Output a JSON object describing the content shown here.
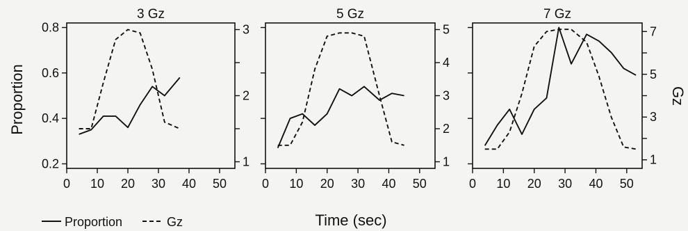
{
  "figure": {
    "ylabel_left": "Proportion",
    "ylabel_right": "Gz",
    "xlabel": "Time (sec)"
  },
  "legend": {
    "position": "bottom-left",
    "items": [
      {
        "label": "Proportion",
        "style": "solid"
      },
      {
        "label": "Gz",
        "style": "dashed"
      }
    ]
  },
  "chart_data": [
    {
      "type": "line",
      "title": "3 Gz",
      "xlim": [
        0,
        55
      ],
      "xticks": [
        0,
        10,
        20,
        30,
        40,
        50
      ],
      "left_axis": {
        "ylim": [
          0.18,
          0.82
        ],
        "ticks": [
          0.2,
          0.4,
          0.6,
          0.8
        ],
        "tick_labels": [
          "0.2",
          "0.4",
          "0.6",
          "0.8"
        ]
      },
      "right_axis": {
        "ylim": [
          0.9,
          3.1
        ],
        "ticks": [
          1,
          1.5,
          2,
          2.5,
          3
        ],
        "tick_labels": [
          "1",
          "",
          "2",
          "",
          "3"
        ]
      },
      "series": [
        {
          "name": "Proportion",
          "axis": "left",
          "style": "solid",
          "x": [
            4,
            8,
            12,
            16,
            20,
            24,
            28,
            32,
            37
          ],
          "y": [
            0.33,
            0.35,
            0.41,
            0.41,
            0.36,
            0.46,
            0.54,
            0.5,
            0.58
          ]
        },
        {
          "name": "Gz",
          "axis": "right",
          "style": "dashed",
          "x": [
            4,
            8,
            12,
            16,
            20,
            24,
            28,
            32,
            37
          ],
          "y": [
            1.5,
            1.5,
            2.2,
            2.85,
            3.0,
            2.95,
            2.4,
            1.6,
            1.5
          ]
        }
      ]
    },
    {
      "type": "line",
      "title": "5 Gz",
      "xlim": [
        0,
        55
      ],
      "xticks": [
        0,
        10,
        20,
        30,
        40,
        50
      ],
      "left_axis": {
        "ylim": [
          0.18,
          0.82
        ],
        "ticks": [
          0.2,
          0.4,
          0.6,
          0.8
        ],
        "tick_labels": []
      },
      "right_axis": {
        "ylim": [
          0.8,
          5.2
        ],
        "ticks": [
          1,
          2,
          3,
          4,
          5
        ],
        "tick_labels": [
          "1",
          "2",
          "3",
          "4",
          "5"
        ]
      },
      "series": [
        {
          "name": "Proportion",
          "axis": "left",
          "style": "solid",
          "x": [
            4,
            8,
            12,
            16,
            20,
            24,
            28,
            32,
            37,
            41,
            45
          ],
          "y": [
            0.27,
            0.4,
            0.42,
            0.37,
            0.42,
            0.53,
            0.5,
            0.54,
            0.48,
            0.51,
            0.5
          ]
        },
        {
          "name": "Gz",
          "axis": "right",
          "style": "dashed",
          "x": [
            4,
            8,
            12,
            16,
            20,
            24,
            28,
            32,
            37,
            41,
            45
          ],
          "y": [
            1.5,
            1.5,
            2.2,
            3.8,
            4.8,
            4.9,
            4.9,
            4.8,
            3.0,
            1.6,
            1.5
          ]
        }
      ]
    },
    {
      "type": "line",
      "title": "7 Gz",
      "xlim": [
        0,
        55
      ],
      "xticks": [
        0,
        10,
        20,
        30,
        40,
        50
      ],
      "left_axis": {
        "ylim": [
          0.18,
          0.82
        ],
        "ticks": [
          0.2,
          0.4,
          0.6,
          0.8
        ],
        "tick_labels": []
      },
      "right_axis": {
        "ylim": [
          0.6,
          7.4
        ],
        "ticks": [
          1,
          2,
          3,
          4,
          5,
          6,
          7
        ],
        "tick_labels": [
          "1",
          "",
          "3",
          "",
          "5",
          "",
          "7"
        ]
      },
      "series": [
        {
          "name": "Proportion",
          "axis": "left",
          "style": "solid",
          "x": [
            4,
            8,
            12,
            16,
            20,
            24,
            28,
            32,
            37,
            41,
            45,
            49,
            53
          ],
          "y": [
            0.28,
            0.37,
            0.44,
            0.33,
            0.44,
            0.49,
            0.8,
            0.64,
            0.77,
            0.74,
            0.69,
            0.62,
            0.59
          ]
        },
        {
          "name": "Gz",
          "axis": "right",
          "style": "dashed",
          "x": [
            4,
            8,
            12,
            16,
            20,
            24,
            28,
            32,
            37,
            41,
            45,
            49,
            53
          ],
          "y": [
            1.5,
            1.5,
            2.3,
            4.1,
            6.3,
            7.0,
            7.1,
            7.1,
            6.5,
            4.9,
            3.0,
            1.6,
            1.5
          ]
        }
      ]
    }
  ]
}
